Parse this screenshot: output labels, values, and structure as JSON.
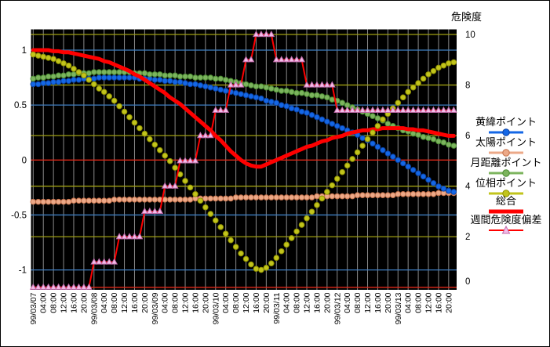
{
  "window": {
    "bg": "#ffffff",
    "frame_color": "#000000"
  },
  "chart_data": {
    "type": "line",
    "plot_bg": "#000000",
    "grid": {
      "vertical_color": "#8a8a8a",
      "left_tick_line_color": "#3f7fc4",
      "right_tick_line_color": "#a0a012",
      "zero_line_color": "#e02818"
    },
    "left_axis": {
      "ticks": [
        1,
        0.5,
        0,
        -0.5,
        -1
      ],
      "tick_labels": [
        "1",
        "0.5",
        "0",
        "-0.5",
        "-1"
      ],
      "range_note": "primary value axis"
    },
    "right_axis": {
      "title": "危険度",
      "ticks": [
        10,
        8,
        6,
        4,
        2,
        0
      ],
      "tick_labels": [
        "10",
        "8",
        "6",
        "4",
        "2",
        "0"
      ],
      "min": 0,
      "max": 10,
      "grid_ticks": [
        2,
        4,
        6,
        8,
        10
      ]
    },
    "x_labels": [
      "99/03/07",
      "04:00",
      "08:00",
      "12:00",
      "16:00",
      "20:00",
      "99/03/08",
      "04:00",
      "08:00",
      "12:00",
      "16:00",
      "20:00",
      "99/03/09",
      "04:00",
      "08:00",
      "12:00",
      "16:00",
      "20:00",
      "99/03/10",
      "04:00",
      "08:00",
      "12:00",
      "16:00",
      "20:00",
      "99/03/11",
      "04:00",
      "08:00",
      "12:00",
      "16:00",
      "20:00",
      "99/03/12",
      "04:00",
      "08:00",
      "12:00",
      "16:00",
      "20:00",
      "99/03/13",
      "04:00",
      "08:00",
      "12:00",
      "16:00",
      "20:00"
    ],
    "points_per_label": 2,
    "draw_order": [
      1,
      0,
      2,
      4,
      3,
      5
    ],
    "series": [
      {
        "key": "ecliptic-latitude-point",
        "name": "黄緯ポイント",
        "axis": "left",
        "marker": "circle",
        "color": "#1467e6",
        "edge": "#0a3f9f",
        "values": [
          0.69,
          0.69,
          0.7,
          0.7,
          0.71,
          0.71,
          0.72,
          0.72,
          0.73,
          0.73,
          0.74,
          0.74,
          0.74,
          0.75,
          0.75,
          0.75,
          0.75,
          0.75,
          0.75,
          0.75,
          0.75,
          0.74,
          0.74,
          0.74,
          0.73,
          0.73,
          0.72,
          0.72,
          0.71,
          0.71,
          0.7,
          0.69,
          0.69,
          0.68,
          0.67,
          0.66,
          0.65,
          0.64,
          0.63,
          0.62,
          0.61,
          0.6,
          0.59,
          0.58,
          0.57,
          0.56,
          0.54,
          0.53,
          0.52,
          0.5,
          0.49,
          0.47,
          0.46,
          0.44,
          0.43,
          0.41,
          0.39,
          0.37,
          0.35,
          0.33,
          0.31,
          0.29,
          0.27,
          0.25,
          0.23,
          0.2,
          0.18,
          0.15,
          0.12,
          0.09,
          0.06,
          0.03,
          0.0,
          -0.03,
          -0.06,
          -0.09,
          -0.12,
          -0.15,
          -0.18,
          -0.21,
          -0.24,
          -0.26,
          -0.28,
          -0.29
        ]
      },
      {
        "key": "sun-point",
        "name": "太陽ポイント",
        "axis": "left",
        "marker": "circle",
        "color": "#eca988",
        "edge": "#c3714b",
        "values": [
          -0.38,
          -0.38,
          -0.38,
          -0.38,
          -0.38,
          -0.38,
          -0.38,
          -0.38,
          -0.37,
          -0.37,
          -0.37,
          -0.37,
          -0.37,
          -0.37,
          -0.37,
          -0.37,
          -0.36,
          -0.36,
          -0.36,
          -0.36,
          -0.36,
          -0.36,
          -0.36,
          -0.36,
          -0.36,
          -0.36,
          -0.36,
          -0.36,
          -0.36,
          -0.36,
          -0.36,
          -0.36,
          -0.35,
          -0.35,
          -0.35,
          -0.35,
          -0.35,
          -0.35,
          -0.35,
          -0.35,
          -0.34,
          -0.34,
          -0.34,
          -0.34,
          -0.34,
          -0.34,
          -0.34,
          -0.34,
          -0.34,
          -0.34,
          -0.34,
          -0.34,
          -0.34,
          -0.34,
          -0.34,
          -0.34,
          -0.33,
          -0.33,
          -0.33,
          -0.33,
          -0.33,
          -0.33,
          -0.33,
          -0.33,
          -0.32,
          -0.32,
          -0.32,
          -0.32,
          -0.32,
          -0.32,
          -0.32,
          -0.32,
          -0.31,
          -0.31,
          -0.31,
          -0.31,
          -0.31,
          -0.31,
          -0.31,
          -0.31,
          -0.3,
          -0.3,
          -0.3,
          -0.3
        ]
      },
      {
        "key": "moon-distance-point",
        "name": "月距離ポイント",
        "axis": "left",
        "marker": "circle",
        "color": "#7cb45e",
        "edge": "#4a8a32",
        "values": [
          0.74,
          0.75,
          0.75,
          0.76,
          0.76,
          0.77,
          0.77,
          0.78,
          0.78,
          0.79,
          0.79,
          0.79,
          0.8,
          0.8,
          0.8,
          0.8,
          0.8,
          0.8,
          0.8,
          0.8,
          0.79,
          0.79,
          0.79,
          0.78,
          0.78,
          0.78,
          0.77,
          0.77,
          0.77,
          0.76,
          0.76,
          0.76,
          0.75,
          0.75,
          0.75,
          0.75,
          0.74,
          0.74,
          0.73,
          0.72,
          0.71,
          0.7,
          0.69,
          0.68,
          0.67,
          0.67,
          0.66,
          0.65,
          0.64,
          0.63,
          0.63,
          0.62,
          0.61,
          0.61,
          0.6,
          0.59,
          0.59,
          0.58,
          0.57,
          0.55,
          0.54,
          0.52,
          0.5,
          0.48,
          0.46,
          0.44,
          0.42,
          0.4,
          0.38,
          0.36,
          0.33,
          0.31,
          0.29,
          0.27,
          0.26,
          0.24,
          0.23,
          0.21,
          0.2,
          0.19,
          0.17,
          0.16,
          0.14,
          0.13
        ]
      },
      {
        "key": "phase-point",
        "name": "位相ポイント",
        "axis": "left",
        "marker": "circle",
        "color": "#c2c41c",
        "edge": "#8f9100",
        "values": [
          0.96,
          0.95,
          0.94,
          0.93,
          0.92,
          0.9,
          0.88,
          0.86,
          0.83,
          0.8,
          0.77,
          0.73,
          0.69,
          0.65,
          0.62,
          0.58,
          0.54,
          0.49,
          0.44,
          0.39,
          0.34,
          0.29,
          0.24,
          0.19,
          0.14,
          0.09,
          0.04,
          -0.01,
          -0.07,
          -0.13,
          -0.19,
          -0.25,
          -0.31,
          -0.37,
          -0.43,
          -0.49,
          -0.55,
          -0.61,
          -0.67,
          -0.73,
          -0.79,
          -0.85,
          -0.9,
          -0.95,
          -0.99,
          -1.0,
          -0.98,
          -0.94,
          -0.89,
          -0.83,
          -0.77,
          -0.71,
          -0.65,
          -0.59,
          -0.53,
          -0.47,
          -0.41,
          -0.35,
          -0.29,
          -0.23,
          -0.17,
          -0.11,
          -0.05,
          0.01,
          0.07,
          0.13,
          0.19,
          0.25,
          0.31,
          0.37,
          0.42,
          0.47,
          0.52,
          0.57,
          0.62,
          0.66,
          0.7,
          0.74,
          0.78,
          0.81,
          0.84,
          0.86,
          0.88,
          0.89
        ]
      },
      {
        "key": "total",
        "name": "総合",
        "axis": "left",
        "marker": "none",
        "line": true,
        "color": "#ff0000",
        "width": 5,
        "values": [
          1.0,
          1.0,
          1.0,
          1.0,
          0.99,
          0.99,
          0.98,
          0.98,
          0.97,
          0.96,
          0.95,
          0.94,
          0.93,
          0.92,
          0.9,
          0.89,
          0.87,
          0.85,
          0.83,
          0.81,
          0.78,
          0.76,
          0.73,
          0.7,
          0.67,
          0.64,
          0.61,
          0.57,
          0.54,
          0.51,
          0.47,
          0.43,
          0.39,
          0.35,
          0.31,
          0.27,
          0.22,
          0.18,
          0.13,
          0.08,
          0.04,
          0.0,
          -0.03,
          -0.05,
          -0.06,
          -0.06,
          -0.04,
          -0.02,
          0.0,
          0.02,
          0.04,
          0.06,
          0.08,
          0.1,
          0.12,
          0.13,
          0.15,
          0.17,
          0.18,
          0.2,
          0.21,
          0.22,
          0.24,
          0.25,
          0.26,
          0.27,
          0.27,
          0.28,
          0.28,
          0.29,
          0.29,
          0.29,
          0.29,
          0.29,
          0.28,
          0.28,
          0.27,
          0.27,
          0.26,
          0.25,
          0.24,
          0.23,
          0.22,
          0.22
        ]
      },
      {
        "key": "weekly-risk-deviation",
        "name": "週間危険度偏差",
        "axis": "right",
        "marker": "triangle",
        "color": "#f4bce8",
        "edge": "#c06aa8",
        "line_color": "#ff0000",
        "line_width": 2,
        "values": [
          0,
          0,
          0,
          0,
          0,
          0,
          0,
          0,
          0,
          0,
          0,
          0,
          1,
          1,
          1,
          1,
          1,
          2,
          2,
          2,
          2,
          2,
          3,
          3,
          3,
          3,
          4,
          4,
          4,
          5,
          5,
          5,
          5,
          6,
          6,
          6,
          7,
          7,
          7,
          8,
          8,
          8,
          9,
          9,
          10,
          10,
          10,
          10,
          9,
          9,
          9,
          9,
          9,
          9,
          8,
          8,
          8,
          8,
          8,
          8,
          7,
          7,
          7,
          7,
          7,
          7,
          7,
          7,
          7,
          7,
          7,
          7,
          7,
          7,
          7,
          7,
          7,
          7,
          7,
          7,
          7,
          7,
          7,
          7
        ]
      }
    ],
    "time_note": "data every 2 hours from 99/03/07 00:00 to 99/03/13 22:00, labels every 4 hours"
  }
}
